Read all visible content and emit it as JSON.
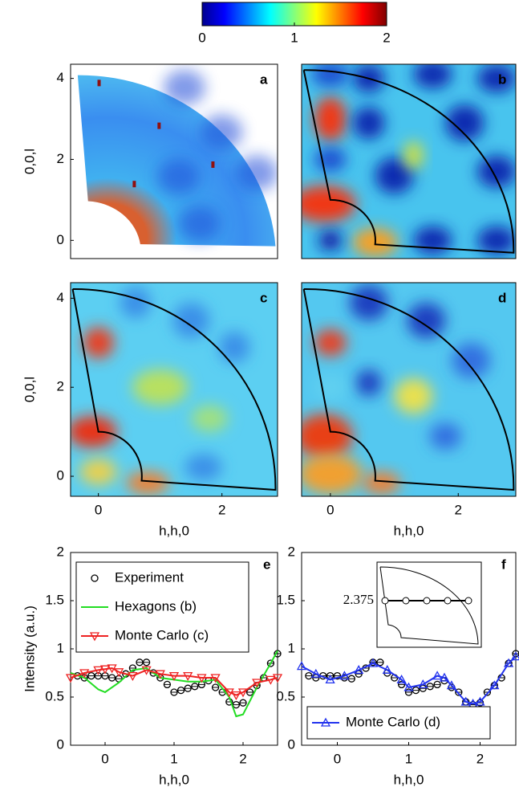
{
  "chart_data": [
    {
      "type": "heatmap",
      "label": "a",
      "xlim": [
        -0.45,
        2.9
      ],
      "ylim": [
        -0.45,
        4.35
      ],
      "yticks": [
        0,
        2,
        4
      ],
      "ylabel": "0,0,l",
      "clim": [
        0,
        2
      ],
      "colorbar_ticks": [
        0,
        1,
        2
      ]
    },
    {
      "type": "heatmap",
      "label": "b",
      "xlim": [
        -0.45,
        2.9
      ],
      "ylim": [
        -0.45,
        4.35
      ]
    },
    {
      "type": "heatmap",
      "label": "c",
      "xlim": [
        -0.45,
        2.9
      ],
      "ylim": [
        -0.45,
        4.35
      ],
      "yticks": [
        0,
        2,
        4
      ],
      "xticks": [
        0,
        2
      ],
      "ylabel": "0,0,l",
      "xlabel": "h,h,0"
    },
    {
      "type": "heatmap",
      "label": "d",
      "xlim": [
        -0.45,
        2.9
      ],
      "ylim": [
        -0.45,
        4.35
      ],
      "xticks": [
        0,
        2
      ],
      "xlabel": "h,h,0"
    },
    {
      "type": "line",
      "label": "e",
      "xlim": [
        -0.5,
        2.5
      ],
      "ylim": [
        0,
        2
      ],
      "xticks": [
        0,
        1,
        2
      ],
      "yticks": [
        0,
        0.5,
        1,
        1.5,
        2
      ],
      "xlabel": "h,h,0",
      "ylabel": "Intensity (a.u.)",
      "legend": "upper left",
      "series": [
        {
          "name": "Experiment",
          "color": "#000000",
          "marker": "circle",
          "line": false,
          "x": [
            -0.4,
            -0.3,
            -0.2,
            -0.1,
            0,
            0.1,
            0.2,
            0.3,
            0.4,
            0.5,
            0.6,
            0.7,
            0.8,
            0.9,
            1.0,
            1.1,
            1.2,
            1.3,
            1.4,
            1.5,
            1.6,
            1.7,
            1.8,
            1.9,
            2.0,
            2.1,
            2.2,
            2.3,
            2.4,
            2.5
          ],
          "values": [
            0.72,
            0.7,
            0.72,
            0.72,
            0.72,
            0.7,
            0.69,
            0.74,
            0.8,
            0.86,
            0.86,
            0.75,
            0.7,
            0.63,
            0.55,
            0.57,
            0.59,
            0.61,
            0.63,
            0.67,
            0.6,
            0.55,
            0.45,
            0.42,
            0.44,
            0.55,
            0.62,
            0.7,
            0.85,
            0.95
          ]
        },
        {
          "name": "Hexagons (b)",
          "color": "#22dd22",
          "marker": "none",
          "line": true,
          "x": [
            -0.5,
            -0.3,
            -0.1,
            0,
            0.2,
            0.4,
            0.6,
            0.8,
            1.0,
            1.2,
            1.4,
            1.6,
            1.8,
            1.9,
            2.0,
            2.2,
            2.4,
            2.5
          ],
          "values": [
            0.75,
            0.7,
            0.58,
            0.55,
            0.65,
            0.78,
            0.8,
            0.7,
            0.68,
            0.66,
            0.66,
            0.68,
            0.5,
            0.3,
            0.32,
            0.6,
            0.85,
            0.98
          ]
        },
        {
          "name": "Monte Carlo (c)",
          "color": "#ee2222",
          "marker": "triangle-down",
          "line": true,
          "x": [
            -0.5,
            -0.3,
            -0.1,
            0,
            0.1,
            0.2,
            0.4,
            0.6,
            0.8,
            1.0,
            1.2,
            1.4,
            1.6,
            1.8,
            1.9,
            2.0,
            2.2,
            2.4,
            2.5
          ],
          "values": [
            0.7,
            0.75,
            0.78,
            0.79,
            0.8,
            0.76,
            0.72,
            0.78,
            0.74,
            0.72,
            0.72,
            0.7,
            0.7,
            0.55,
            0.52,
            0.55,
            0.65,
            0.68,
            0.7
          ]
        }
      ]
    },
    {
      "type": "line",
      "label": "f",
      "xlim": [
        -0.5,
        2.5
      ],
      "ylim": [
        0,
        2
      ],
      "xticks": [
        0,
        1,
        2
      ],
      "yticks": [
        0,
        0.5,
        1,
        1.5,
        2
      ],
      "xlabel": "h,h,0",
      "legend": "lower left",
      "inset_label": "2.375",
      "series": [
        {
          "color": "#000000",
          "marker": "circle",
          "line": false,
          "x": [
            -0.4,
            -0.3,
            -0.2,
            -0.1,
            0,
            0.1,
            0.2,
            0.3,
            0.4,
            0.5,
            0.6,
            0.7,
            0.8,
            0.9,
            1.0,
            1.1,
            1.2,
            1.3,
            1.4,
            1.5,
            1.6,
            1.7,
            1.8,
            1.9,
            2.0,
            2.1,
            2.2,
            2.3,
            2.4,
            2.5
          ],
          "values": [
            0.72,
            0.7,
            0.72,
            0.72,
            0.72,
            0.7,
            0.69,
            0.74,
            0.8,
            0.86,
            0.86,
            0.75,
            0.7,
            0.63,
            0.55,
            0.57,
            0.59,
            0.61,
            0.63,
            0.67,
            0.6,
            0.55,
            0.45,
            0.42,
            0.44,
            0.55,
            0.62,
            0.7,
            0.85,
            0.95
          ]
        },
        {
          "name": "Monte Carlo (d)",
          "color": "#2233ee",
          "marker": "triangle-up",
          "line": true,
          "x": [
            -0.5,
            -0.3,
            -0.1,
            0.1,
            0.3,
            0.5,
            0.7,
            0.9,
            1.0,
            1.2,
            1.4,
            1.5,
            1.6,
            1.8,
            1.9,
            2.0,
            2.2,
            2.4,
            2.5
          ],
          "values": [
            0.82,
            0.74,
            0.68,
            0.72,
            0.78,
            0.85,
            0.78,
            0.68,
            0.6,
            0.63,
            0.72,
            0.7,
            0.62,
            0.45,
            0.43,
            0.45,
            0.62,
            0.85,
            0.92
          ]
        }
      ]
    }
  ]
}
